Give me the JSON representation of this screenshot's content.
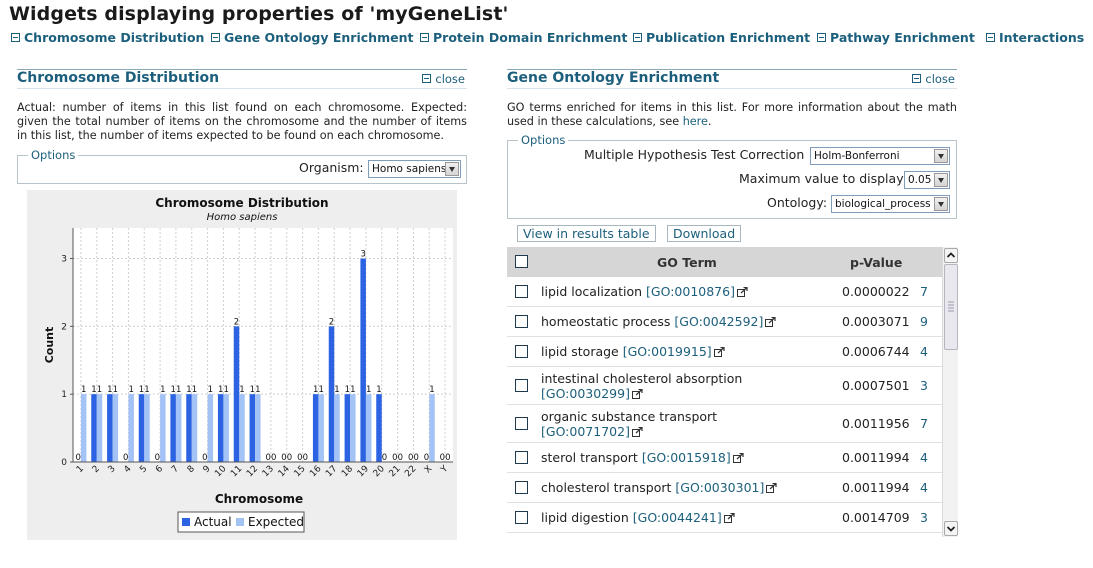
{
  "page": {
    "title": "Widgets displaying properties of 'myGeneList'"
  },
  "nav": [
    {
      "label": "Chromosome Distribution"
    },
    {
      "label": "Gene Ontology Enrichment"
    },
    {
      "label": "Protein Domain Enrichment"
    },
    {
      "label": "Publication Enrichment"
    },
    {
      "label": "Pathway Enrichment"
    },
    {
      "label": "Interactions"
    }
  ],
  "chromosome_widget": {
    "title": "Chromosome Distribution",
    "close_label": "close",
    "description": "Actual: number of items in this list found on each chromosome. Expected: given the total number of items on the chromosome and the number of items in this list, the number of items expected to be found on each chromosome.",
    "options_legend": "Options",
    "organism_label": "Organism:",
    "organism_value": "Homo sapiens"
  },
  "go_widget": {
    "title": "Gene Ontology Enrichment",
    "close_label": "close",
    "description_prefix": "GO terms enriched for items in this list. For more information about the math used in these calculations, see ",
    "description_link": "here",
    "description_suffix": ".",
    "options_legend": "Options",
    "correction_label": "Multiple Hypothesis Test Correction",
    "correction_value": "Holm-Bonferroni",
    "max_label": "Maximum value to display",
    "max_value": "0.05",
    "ontology_label": "Ontology:",
    "ontology_value": "biological_process",
    "view_button": "View in results table",
    "download_button": "Download",
    "table": {
      "col_term": "GO Term",
      "col_pvalue": "p-Value",
      "rows": [
        {
          "term": "lipid localization",
          "go": "[GO:0010876]",
          "pvalue": "0.0000022",
          "count": "7"
        },
        {
          "term": "homeostatic process",
          "go": "[GO:0042592]",
          "pvalue": "0.0003071",
          "count": "9"
        },
        {
          "term": "lipid storage",
          "go": "[GO:0019915]",
          "pvalue": "0.0006744",
          "count": "4"
        },
        {
          "term": "intestinal cholesterol absorption",
          "go": "[GO:0030299]",
          "pvalue": "0.0007501",
          "count": "3"
        },
        {
          "term": "organic substance transport",
          "go": "[GO:0071702]",
          "pvalue": "0.0011956",
          "count": "7"
        },
        {
          "term": "sterol transport",
          "go": "[GO:0015918]",
          "pvalue": "0.0011994",
          "count": "4"
        },
        {
          "term": "cholesterol transport",
          "go": "[GO:0030301]",
          "pvalue": "0.0011994",
          "count": "4"
        },
        {
          "term": "lipid digestion",
          "go": "[GO:0044241]",
          "pvalue": "0.0014709",
          "count": "3"
        }
      ]
    }
  },
  "chart_data": {
    "type": "bar",
    "title": "Chromosome Distribution",
    "subtitle": "Homo sapiens",
    "xlabel": "Chromosome",
    "ylabel": "Count",
    "categories": [
      "1",
      "2",
      "3",
      "4",
      "5",
      "6",
      "7",
      "8",
      "9",
      "10",
      "11",
      "12",
      "13",
      "14",
      "15",
      "16",
      "17",
      "18",
      "19",
      "20",
      "21",
      "22",
      "X",
      "Y"
    ],
    "series": [
      {
        "name": "Actual",
        "color": "#2b63e3",
        "values": [
          0,
          1,
          1,
          0,
          1,
          0,
          1,
          1,
          0,
          1,
          2,
          1,
          0,
          0,
          0,
          1,
          2,
          1,
          3,
          1,
          0,
          0,
          0,
          0
        ]
      },
      {
        "name": "Expected",
        "color": "#a3c2f5",
        "values": [
          1,
          1,
          1,
          1,
          1,
          1,
          1,
          1,
          1,
          1,
          1,
          1,
          0,
          0,
          0,
          1,
          1,
          1,
          1,
          0,
          0,
          0,
          1,
          0
        ]
      }
    ],
    "ylim": [
      0,
      3.45
    ],
    "yticks": [
      0,
      1,
      2,
      3
    ],
    "grid": true,
    "legend": "bottom"
  }
}
